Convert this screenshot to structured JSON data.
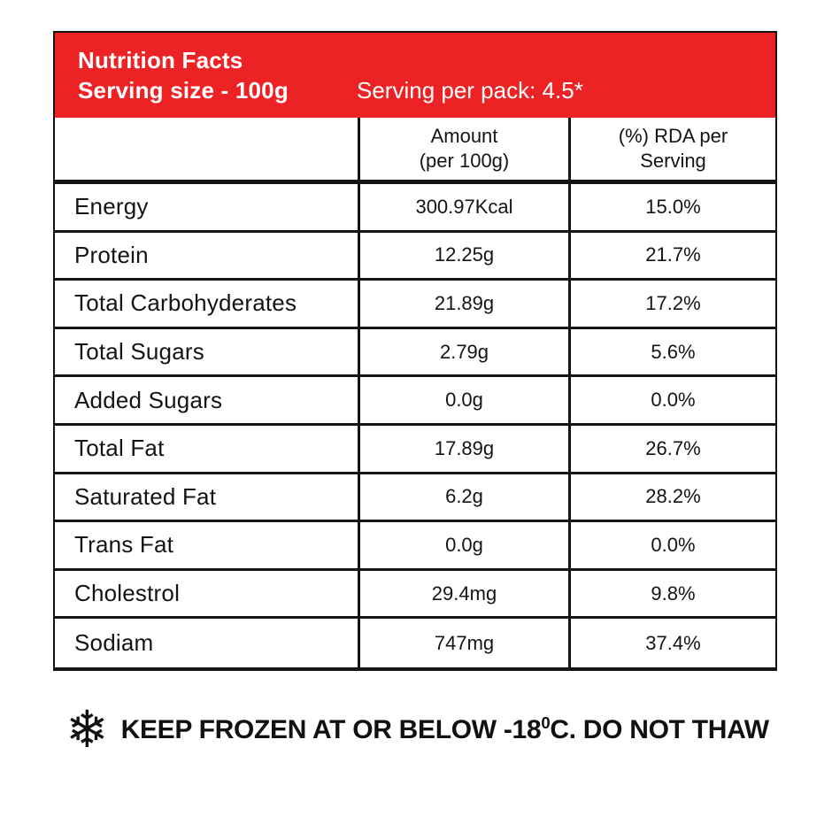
{
  "colors": {
    "header_bg": "#ED2224",
    "border": "#141414",
    "header_text": "#FFFFFF",
    "body_text": "#141414"
  },
  "header": {
    "title": "Nutrition Facts",
    "serving_size": "Serving size - 100g",
    "serving_per_pack": "Serving per pack: 4.5*"
  },
  "table": {
    "col_amount_line1": "Amount",
    "col_amount_line2": "(per 100g)",
    "col_rda_line1": "(%) RDA per",
    "col_rda_line2": "Serving",
    "rows": [
      {
        "name": "Energy",
        "amount": "300.97Kcal",
        "rda": "15.0%"
      },
      {
        "name": "Protein",
        "amount": "12.25g",
        "rda": "21.7%"
      },
      {
        "name": "Total Carbohyderates",
        "amount": "21.89g",
        "rda": "17.2%"
      },
      {
        "name": "Total Sugars",
        "amount": "2.79g",
        "rda": "5.6%"
      },
      {
        "name": "Added Sugars",
        "amount": "0.0g",
        "rda": "0.0%"
      },
      {
        "name": "Total Fat",
        "amount": "17.89g",
        "rda": "26.7%"
      },
      {
        "name": "Saturated Fat",
        "amount": "6.2g",
        "rda": "28.2%"
      },
      {
        "name": "Trans Fat",
        "amount": "0.0g",
        "rda": "0.0%"
      },
      {
        "name": "Cholestrol",
        "amount": "29.4mg",
        "rda": "9.8%"
      },
      {
        "name": "Sodiam",
        "amount": "747mg",
        "rda": "37.4%"
      }
    ]
  },
  "notice": {
    "snowflake_glyph": "❄",
    "text_before_sup": "KEEP FROZEN AT OR BELOW -18",
    "sup": "0",
    "text_after_sup": "C. DO NOT THAW"
  }
}
